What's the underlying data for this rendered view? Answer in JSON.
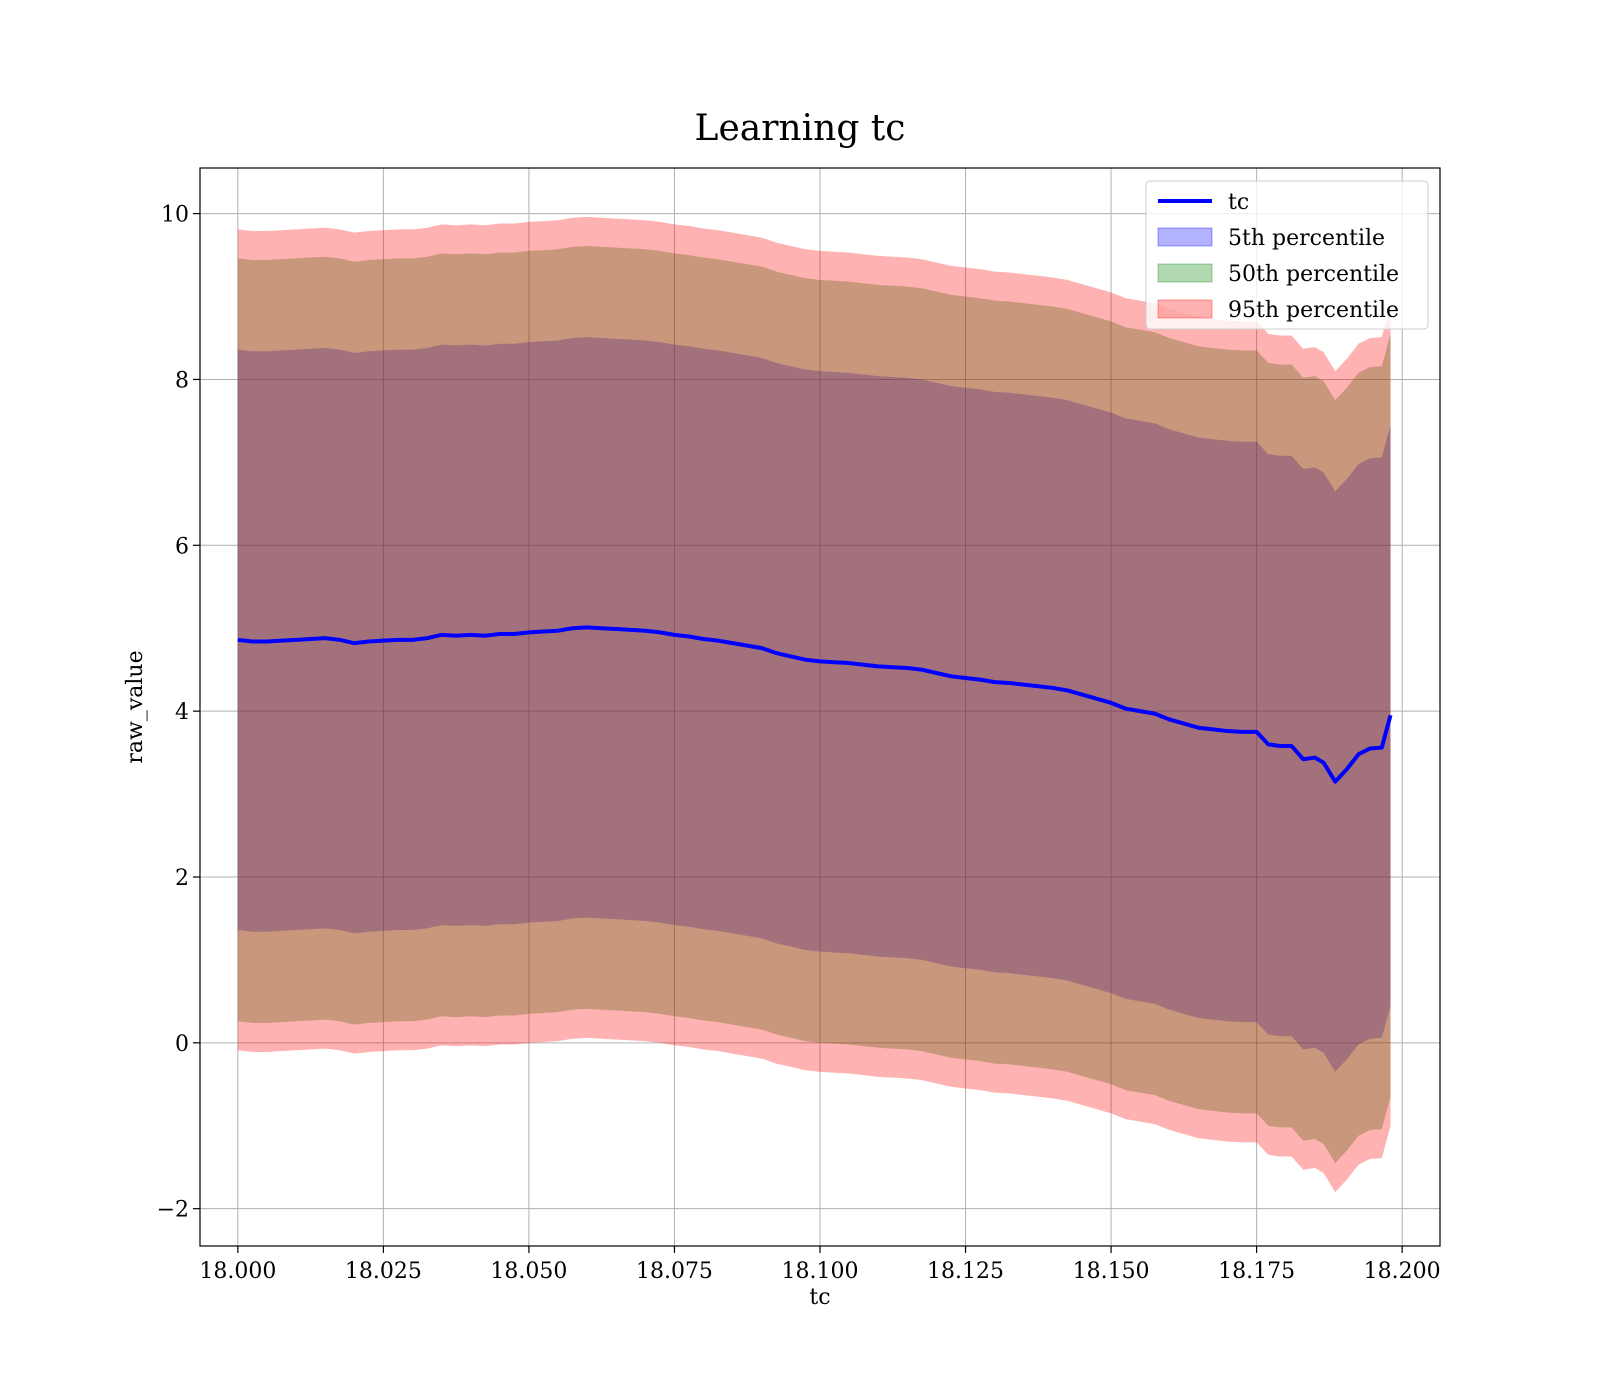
{
  "chart_data": {
    "type": "area",
    "title": "Learning tc",
    "xlabel": "tc",
    "ylabel": "raw_value",
    "xlim": [
      17.9935,
      18.2065
    ],
    "ylim": [
      -2.45,
      10.55
    ],
    "xticks": [
      18.0,
      18.025,
      18.05,
      18.075,
      18.1,
      18.125,
      18.15,
      18.175,
      18.2
    ],
    "xtick_labels": [
      "18.000",
      "18.025",
      "18.050",
      "18.075",
      "18.100",
      "18.125",
      "18.150",
      "18.175",
      "18.200"
    ],
    "yticks": [
      -2,
      0,
      2,
      4,
      6,
      8,
      10
    ],
    "ytick_labels": [
      "−2",
      "0",
      "2",
      "4",
      "6",
      "8",
      "10"
    ],
    "grid": true,
    "legend_position": "top-right",
    "x": [
      18.0,
      18.0025,
      18.005,
      18.0075,
      18.01,
      18.0125,
      18.015,
      18.0175,
      18.02,
      18.0225,
      18.025,
      18.0275,
      18.03,
      18.0325,
      18.035,
      18.0375,
      18.04,
      18.0425,
      18.045,
      18.0475,
      18.05,
      18.0525,
      18.055,
      18.0575,
      18.06,
      18.0625,
      18.065,
      18.0675,
      18.07,
      18.0725,
      18.075,
      18.0775,
      18.08,
      18.0825,
      18.085,
      18.0875,
      18.09,
      18.0925,
      18.095,
      18.0975,
      18.1,
      18.1025,
      18.105,
      18.1075,
      18.11,
      18.1125,
      18.115,
      18.1175,
      18.12,
      18.1225,
      18.125,
      18.1275,
      18.13,
      18.1325,
      18.135,
      18.1375,
      18.14,
      18.1425,
      18.145,
      18.1475,
      18.15,
      18.1525,
      18.155,
      18.1575,
      18.16,
      18.1625,
      18.165,
      18.1675,
      18.17,
      18.1725,
      18.175,
      18.177,
      18.179,
      18.181,
      18.183,
      18.185,
      18.1865,
      18.1885,
      18.1905,
      18.1925,
      18.1945,
      18.1965,
      18.198
    ],
    "series": [
      {
        "name": "tc",
        "kind": "line",
        "color": "#0000ff",
        "values": [
          4.86,
          4.84,
          4.84,
          4.85,
          4.86,
          4.87,
          4.88,
          4.86,
          4.82,
          4.84,
          4.85,
          4.86,
          4.86,
          4.88,
          4.92,
          4.91,
          4.92,
          4.91,
          4.93,
          4.93,
          4.95,
          4.96,
          4.97,
          5.0,
          5.01,
          5.0,
          4.99,
          4.98,
          4.97,
          4.95,
          4.92,
          4.9,
          4.87,
          4.85,
          4.82,
          4.79,
          4.76,
          4.7,
          4.66,
          4.62,
          4.6,
          4.59,
          4.58,
          4.56,
          4.54,
          4.53,
          4.52,
          4.5,
          4.46,
          4.42,
          4.4,
          4.38,
          4.35,
          4.34,
          4.32,
          4.3,
          4.28,
          4.25,
          4.2,
          4.15,
          4.1,
          4.03,
          4.0,
          3.97,
          3.9,
          3.85,
          3.8,
          3.78,
          3.76,
          3.75,
          3.75,
          3.6,
          3.58,
          3.58,
          3.42,
          3.44,
          3.38,
          3.15,
          3.3,
          3.48,
          3.55,
          3.56,
          3.95
        ]
      },
      {
        "name": "5th percentile",
        "kind": "band",
        "color": "#0000ff",
        "offset": 3.5
      },
      {
        "name": "50th percentile",
        "kind": "band",
        "color": "#008000",
        "offset": 4.6
      },
      {
        "name": "95th percentile",
        "kind": "band",
        "color": "#ff0000",
        "offset": 4.95
      }
    ]
  }
}
